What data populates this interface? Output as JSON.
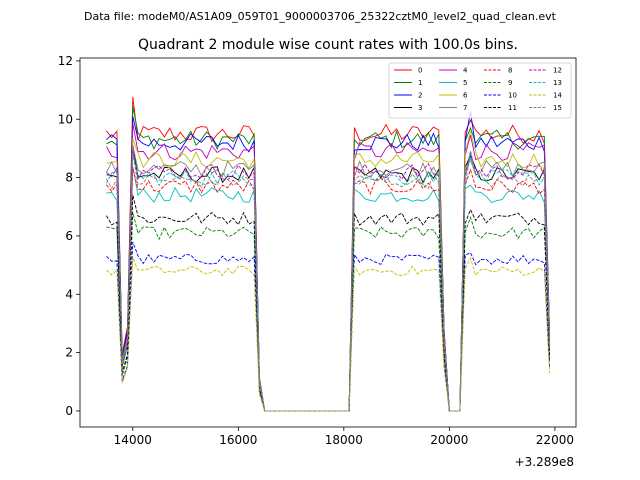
{
  "chart_data": {
    "type": "line",
    "suptitle": "Data file: modeM0/AS1A09_059T01_9000003706_25322cztM0_level2_quad_clean.evt",
    "title": "Quadrant 2 module wise count rates with 100.0s bins.",
    "xlabel": "",
    "ylabel": "",
    "x_offset_label": "+3.289e8",
    "xlim": [
      13000,
      22400
    ],
    "ylim": [
      -0.55,
      12.1
    ],
    "xticks": [
      14000,
      16000,
      18000,
      20000,
      22000
    ],
    "yticks": [
      0,
      2,
      4,
      6,
      8,
      10,
      12
    ],
    "xtick_labels": [
      "14000",
      "16000",
      "18000",
      "20000",
      "22000"
    ],
    "ytick_labels": [
      "0",
      "2",
      "4",
      "6",
      "8",
      "10",
      "12"
    ],
    "grid": false,
    "legend_position": "top-right",
    "legend_columns": 4,
    "profile": {
      "segments": [
        {
          "x_start": 13500,
          "x_end": 13700,
          "level": 1.0
        },
        {
          "x_start": 13800,
          "x_end": 13800,
          "level": 0.2
        },
        {
          "x_start": 13900,
          "x_end": 13900,
          "level": 0.3
        },
        {
          "x_start": 14000,
          "x_end": 16300,
          "level": 1.0
        },
        {
          "x_start": 16400,
          "x_end": 16400,
          "level": 0.12
        },
        {
          "x_start": 16500,
          "x_end": 18100,
          "level": 0.0
        },
        {
          "x_start": 18200,
          "x_end": 19800,
          "level": 1.0
        },
        {
          "x_start": 19900,
          "x_end": 19900,
          "level": 0.3
        },
        {
          "x_start": 20000,
          "x_end": 20200,
          "level": 0.0
        },
        {
          "x_start": 20300,
          "x_end": 21800,
          "level": 1.0
        },
        {
          "x_start": 21900,
          "x_end": 21900,
          "level": 0.28
        }
      ],
      "bin_seconds": 100
    },
    "series": [
      {
        "name": "0",
        "color": "#ff0000",
        "dash": "solid",
        "base": 9.5
      },
      {
        "name": "1",
        "color": "#008000",
        "dash": "solid",
        "base": 9.3
      },
      {
        "name": "2",
        "color": "#0000ff",
        "dash": "solid",
        "base": 9.2
      },
      {
        "name": "3",
        "color": "#000000",
        "dash": "solid",
        "base": 8.1
      },
      {
        "name": "4",
        "color": "#bf00bf",
        "dash": "solid",
        "base": 8.9
      },
      {
        "name": "5",
        "color": "#00bfbf",
        "dash": "solid",
        "base": 7.4
      },
      {
        "name": "6",
        "color": "#bfbf00",
        "dash": "solid",
        "base": 8.6
      },
      {
        "name": "7",
        "color": "#808080",
        "dash": "solid",
        "base": 8.3
      },
      {
        "name": "8",
        "color": "#ff0000",
        "dash": "dashed",
        "base": 7.7
      },
      {
        "name": "9",
        "color": "#008000",
        "dash": "dashed",
        "base": 6.1
      },
      {
        "name": "10",
        "color": "#0000ff",
        "dash": "dashed",
        "base": 5.2
      },
      {
        "name": "11",
        "color": "#000000",
        "dash": "dashed",
        "base": 6.6
      },
      {
        "name": "12",
        "color": "#bf00bf",
        "dash": "dashed",
        "base": 8.2
      },
      {
        "name": "13",
        "color": "#00bfbf",
        "dash": "dashed",
        "base": 8.0
      },
      {
        "name": "14",
        "color": "#bfbf00",
        "dash": "dashed",
        "base": 4.8
      },
      {
        "name": "15",
        "color": "#808080",
        "dash": "dashed",
        "base": 7.9
      }
    ]
  }
}
